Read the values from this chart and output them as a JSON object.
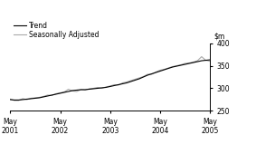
{
  "title": "",
  "ylim": [
    250,
    400
  ],
  "yticks": [
    250,
    300,
    350,
    400
  ],
  "x_tick_labels": [
    "May\n2001",
    "May\n2002",
    "May\n2003",
    "May\n2004",
    "May\n2005"
  ],
  "x_tick_positions": [
    0,
    12,
    24,
    36,
    48
  ],
  "legend_labels": [
    "Trend",
    "Seasonally Adjusted"
  ],
  "trend_color": "#000000",
  "seasonal_color": "#aaaaaa",
  "background_color": "#ffffff",
  "trend_data": [
    275,
    274,
    274,
    275,
    276,
    277,
    278,
    279,
    281,
    283,
    285,
    287,
    289,
    291,
    293,
    295,
    296,
    297,
    297,
    298,
    299,
    300,
    301,
    302,
    304,
    306,
    308,
    310,
    312,
    315,
    318,
    321,
    325,
    329,
    332,
    335,
    338,
    341,
    344,
    347,
    349,
    351,
    353,
    355,
    357,
    359,
    361,
    362,
    363
  ],
  "seasonal_data": [
    276,
    273,
    273,
    277,
    275,
    278,
    279,
    280,
    282,
    285,
    284,
    288,
    290,
    292,
    298,
    294,
    293,
    297,
    296,
    299,
    300,
    302,
    300,
    303,
    305,
    308,
    307,
    312,
    314,
    317,
    320,
    323,
    326,
    331,
    331,
    336,
    340,
    342,
    345,
    348,
    350,
    352,
    355,
    356,
    358,
    361,
    370,
    362,
    360
  ]
}
